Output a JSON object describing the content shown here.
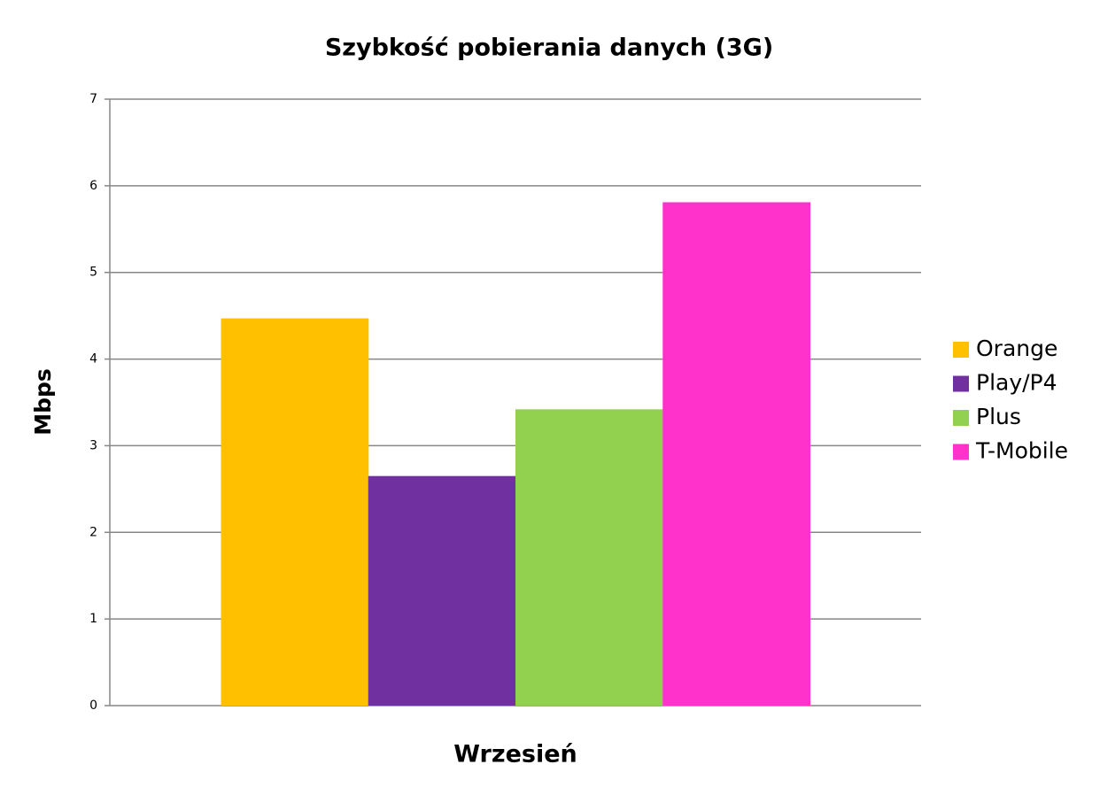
{
  "chart_data": {
    "type": "bar",
    "title": "Szybkość pobierania danych (3G)",
    "y_label": "Mbps",
    "categories": [
      "Wrzesień"
    ],
    "series": [
      {
        "name": "Orange",
        "color": "#ffc000",
        "values": [
          4.47
        ]
      },
      {
        "name": "Play/P4",
        "color": "#7030a0",
        "values": [
          2.65
        ]
      },
      {
        "name": "Plus",
        "color": "#92d050",
        "values": [
          3.42
        ]
      },
      {
        "name": "T-Mobile",
        "color": "#ff33cc",
        "values": [
          5.81
        ]
      }
    ],
    "ylim": [
      0,
      7
    ],
    "yticks": [
      0,
      1,
      2,
      3,
      4,
      5,
      6,
      7
    ],
    "grid": true,
    "legend": "right"
  }
}
